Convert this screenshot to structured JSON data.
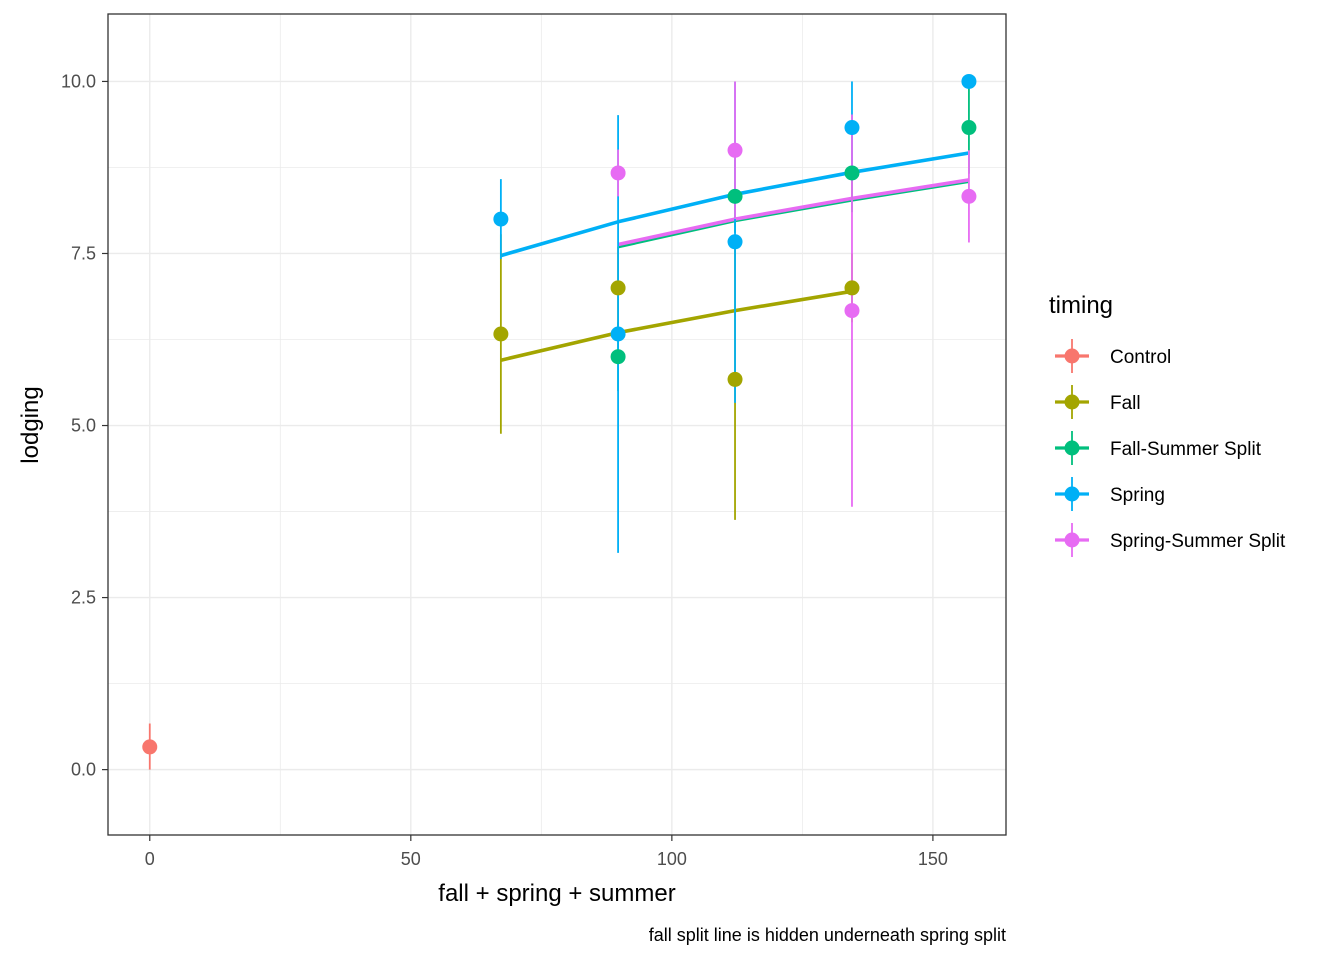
{
  "chart_data": {
    "type": "scatter",
    "title": "",
    "xlabel": "fall + spring + summer",
    "ylabel": "lodging",
    "caption": "fall split line is hidden underneath spring split",
    "xlim": [
      -8,
      164
    ],
    "ylim": [
      -0.95,
      10.98
    ],
    "x_ticks": [
      0,
      50,
      100,
      150
    ],
    "x_minor_ticks": [
      25,
      75,
      125
    ],
    "y_ticks": [
      0.0,
      2.5,
      5.0,
      7.5,
      10.0
    ],
    "y_tick_labels": [
      "0.0",
      "2.5",
      "5.0",
      "7.5",
      "10.0"
    ],
    "y_minor_ticks": [
      1.25,
      3.75,
      6.25,
      8.75
    ],
    "grid": true,
    "legend": {
      "title": "timing",
      "position": "right",
      "entries": [
        "Control",
        "Fall",
        "Fall-Summer Split",
        "Spring",
        "Spring-Summer Split"
      ]
    },
    "series": [
      {
        "name": "Control",
        "color": "#F8766D",
        "points": [
          {
            "x": 0,
            "y": 0.33,
            "ymin": 0.0,
            "ymax": 0.67
          }
        ],
        "fit": []
      },
      {
        "name": "Fall",
        "color": "#A3A500",
        "points": [
          {
            "x": 67.25,
            "y": 6.33,
            "ymin": 4.88,
            "ymax": 7.78
          },
          {
            "x": 89.7,
            "y": 7.0,
            "ymin": 6.4,
            "ymax": 7.6
          },
          {
            "x": 112.1,
            "y": 5.67,
            "ymin": 3.63,
            "ymax": 7.7
          },
          {
            "x": 134.5,
            "y": 7.0,
            "ymin": 6.5,
            "ymax": 7.5
          }
        ],
        "fit": [
          [
            67.25,
            5.95
          ],
          [
            89.7,
            6.35
          ],
          [
            112.1,
            6.67
          ],
          [
            134.5,
            6.95
          ]
        ]
      },
      {
        "name": "Fall-Summer Split",
        "color": "#00BF7D",
        "points": [
          {
            "x": 89.7,
            "y": 6.0,
            "ymin": 5.5,
            "ymax": 6.5
          },
          {
            "x": 112.1,
            "y": 8.33,
            "ymin": 7.8,
            "ymax": 8.86
          },
          {
            "x": 134.5,
            "y": 8.67,
            "ymin": 8.1,
            "ymax": 9.24
          },
          {
            "x": 156.9,
            "y": 9.33,
            "ymin": 8.66,
            "ymax": 10.0
          }
        ],
        "fit": [
          [
            89.7,
            7.6
          ],
          [
            112.1,
            7.98
          ],
          [
            134.5,
            8.28
          ],
          [
            156.9,
            8.55
          ]
        ]
      },
      {
        "name": "Spring",
        "color": "#00B0F6",
        "points": [
          {
            "x": 67.25,
            "y": 8.0,
            "ymin": 7.42,
            "ymax": 8.58
          },
          {
            "x": 89.7,
            "y": 6.33,
            "ymin": 3.15,
            "ymax": 9.51
          },
          {
            "x": 112.1,
            "y": 7.67,
            "ymin": 5.33,
            "ymax": 10.0
          },
          {
            "x": 134.5,
            "y": 9.33,
            "ymin": 8.66,
            "ymax": 10.0
          },
          {
            "x": 156.9,
            "y": 10.0,
            "ymin": 10.0,
            "ymax": 10.0
          }
        ],
        "fit": [
          [
            67.25,
            7.47
          ],
          [
            89.7,
            7.96
          ],
          [
            112.1,
            8.36
          ],
          [
            134.5,
            8.68
          ],
          [
            156.9,
            8.96
          ]
        ]
      },
      {
        "name": "Spring-Summer Split",
        "color": "#E76BF3",
        "points": [
          {
            "x": 89.7,
            "y": 8.67,
            "ymin": 8.33,
            "ymax": 9.01
          },
          {
            "x": 112.1,
            "y": 9.0,
            "ymin": 8.0,
            "ymax": 10.0
          },
          {
            "x": 134.5,
            "y": 6.67,
            "ymin": 3.82,
            "ymax": 9.52
          },
          {
            "x": 156.9,
            "y": 8.33,
            "ymin": 7.66,
            "ymax": 9.0
          }
        ],
        "fit": [
          [
            89.7,
            7.63
          ],
          [
            112.1,
            8.0
          ],
          [
            134.5,
            8.3
          ],
          [
            156.9,
            8.57
          ]
        ]
      }
    ]
  }
}
